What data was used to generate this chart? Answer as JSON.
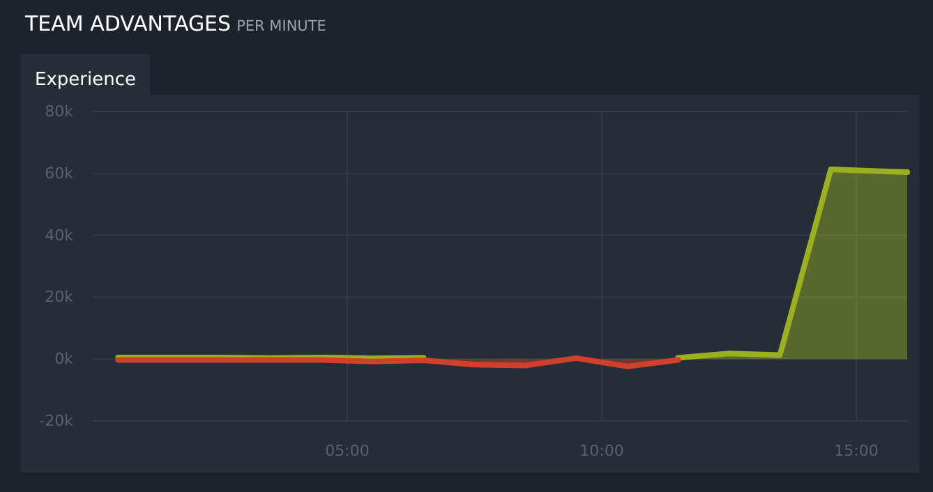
{
  "chart_data": {
    "type": "area",
    "title": "TEAM ADVANTAGES",
    "subtitle": "PER MINUTE",
    "annotations": [
      "Experience"
    ],
    "x": [
      0.5,
      1.5,
      2.5,
      3.5,
      4.5,
      5.5,
      6.5,
      7.5,
      8.5,
      9.5,
      10.5,
      11.5,
      12.5,
      13.5,
      14.5,
      16
    ],
    "series": [
      {
        "color": "#9ab021",
        "values": [
          500,
          500,
          500,
          300,
          500,
          200,
          400,
          null,
          null,
          null,
          null,
          400,
          1800,
          1300,
          61300,
          60400
        ]
      },
      {
        "color": "#d0402a",
        "values": [
          -300,
          -300,
          -300,
          -300,
          -300,
          -800,
          -400,
          -1800,
          -2100,
          300,
          -2400,
          -300,
          null,
          null,
          null,
          null
        ]
      }
    ],
    "xlim": [
      0,
      16
    ],
    "xticks": [
      {
        "value": 5,
        "label": "05:00"
      },
      {
        "value": 10,
        "label": "10:00"
      },
      {
        "value": 15,
        "label": "15:00"
      }
    ],
    "ylim": [
      -20000,
      80000
    ],
    "yticks": [
      {
        "value": -20000,
        "label": "-20k"
      },
      {
        "value": 0,
        "label": "0k"
      },
      {
        "value": 20000,
        "label": "20k"
      },
      {
        "value": 40000,
        "label": "40k"
      },
      {
        "value": 60000,
        "label": "60k"
      },
      {
        "value": 80000,
        "label": "80k"
      }
    ],
    "grid": true
  }
}
